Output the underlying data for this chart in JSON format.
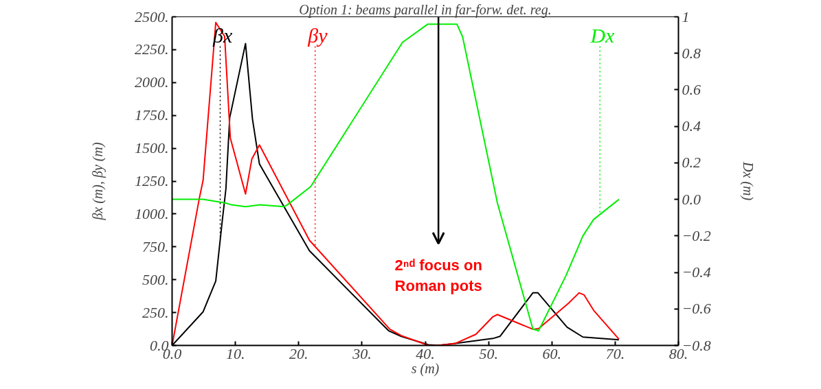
{
  "chart_data": {
    "type": "line",
    "title": "Option 1: beams parallel in far-forw. det. reg.",
    "xlabel": "s (m)",
    "ylabel": "βx (m), βy (m)",
    "y2label": "Dx (m)",
    "xlim": [
      0,
      80
    ],
    "xticks": [
      {
        "value": 0,
        "label": "0.0"
      },
      {
        "value": 10,
        "label": "10."
      },
      {
        "value": 20,
        "label": "20."
      },
      {
        "value": 30,
        "label": "30."
      },
      {
        "value": 40,
        "label": "40."
      },
      {
        "value": 50,
        "label": "50."
      },
      {
        "value": 60,
        "label": "60."
      },
      {
        "value": 70,
        "label": "70."
      },
      {
        "value": 80,
        "label": "80."
      }
    ],
    "ylim": [
      0,
      2500
    ],
    "yticks": [
      {
        "value": 0,
        "label": "0.0"
      },
      {
        "value": 250,
        "label": "250."
      },
      {
        "value": 500,
        "label": "500."
      },
      {
        "value": 750,
        "label": "750."
      },
      {
        "value": 1000,
        "label": "1000."
      },
      {
        "value": 1250,
        "label": "1250."
      },
      {
        "value": 1500,
        "label": "1500."
      },
      {
        "value": 1750,
        "label": "1750."
      },
      {
        "value": 2000,
        "label": "2000."
      },
      {
        "value": 2250,
        "label": "2250."
      },
      {
        "value": 2500,
        "label": "2500."
      }
    ],
    "y2lim": [
      -0.8,
      1.0
    ],
    "y2ticks": [
      -0.8,
      -0.6,
      -0.4,
      -0.2,
      {
        "value": 0,
        "label": "0.0"
      },
      0.2,
      0.4,
      0.6,
      0.8,
      1.0
    ],
    "grid": false,
    "marker": "none",
    "line_style": "solid",
    "series": [
      {
        "color": "#000000",
        "x": [
          0,
          4.9,
          6.9,
          7.9,
          8.5,
          9.1,
          11.6,
          12.7,
          13.8,
          21.7,
          34.2,
          36.2,
          40.5,
          42,
          44.8,
          50.7,
          51.8,
          57,
          57.8,
          62.4,
          64.9,
          70.6
        ],
        "values": [
          0,
          256,
          490,
          938,
          1190,
          1732,
          2297,
          1722,
          1380,
          720,
          112,
          69,
          5,
          0,
          16,
          53,
          69,
          400,
          400,
          139,
          64,
          43
        ]
      },
      {
        "color": "#ff0000",
        "x": [
          0,
          4.3,
          4.9,
          6.9,
          8.3,
          9.2,
          11.6,
          12.6,
          13.8,
          21.7,
          34.4,
          36.2,
          40.5,
          42,
          44.8,
          48,
          50.7,
          51.4,
          57,
          57.9,
          62.6,
          64.3,
          65.1,
          66.6,
          70.6
        ],
        "values": [
          0,
          1119,
          1258,
          2457,
          2351,
          1578,
          1152,
          1418,
          1525,
          800,
          123,
          75,
          0,
          0,
          16,
          85,
          219,
          235,
          123,
          128,
          320,
          400,
          384,
          267,
          48
        ]
      },
      {
        "color": "#00ee00",
        "axis": "y2",
        "x": [
          0,
          4.9,
          8.5,
          9.4,
          11.6,
          13.9,
          17.7,
          18.2,
          21.9,
          36.4,
          40.4,
          45,
          45.9,
          51.4,
          57,
          57.9,
          62.2,
          64.3,
          64.9,
          66.6,
          70.6
        ],
        "values": [
          0,
          0,
          -0.02,
          -0.03,
          -0.04,
          -0.03,
          -0.04,
          -0.03,
          0.07,
          0.86,
          0.96,
          0.96,
          0.89,
          -0.02,
          -0.71,
          -0.72,
          -0.42,
          -0.25,
          -0.2,
          -0.11,
          0
        ]
      }
    ],
    "ref_lines": [
      {
        "axis": "x",
        "value": 7.6,
        "label": "βx",
        "color": "#000000",
        "line_style": "dotted"
      },
      {
        "axis": "x",
        "value": 22.6,
        "label": "βy",
        "color": "#ff0000",
        "line_style": "dotted"
      },
      {
        "axis": "x",
        "value": 67.6,
        "label": "Dx",
        "color": "#00ee00",
        "line_style": "dotted"
      }
    ],
    "annotations": [
      "2ⁿᵈ focus on\nRoman pots"
    ]
  }
}
